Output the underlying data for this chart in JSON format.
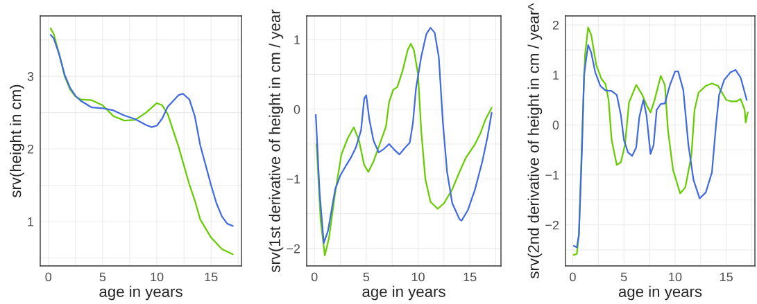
{
  "chart_data": [
    {
      "type": "line",
      "xlabel": "age in years",
      "ylabel": "srv(height in cm)",
      "xlim": [
        -0.75,
        17.8
      ],
      "ylim": [
        0.39,
        3.83
      ],
      "xticks": [
        0,
        5,
        10,
        15
      ],
      "yticks": [
        1,
        2,
        3
      ],
      "grid": true,
      "legend": false,
      "series": [
        {
          "color": "#66cc00",
          "x": [
            0.2,
            0.5,
            1,
            1.5,
            2,
            2.5,
            3,
            4,
            5,
            6,
            7,
            8,
            9,
            10,
            10.5,
            11,
            12,
            13,
            13.5,
            14,
            15,
            16,
            17
          ],
          "values": [
            3.66,
            3.58,
            3.3,
            3.0,
            2.82,
            2.72,
            2.68,
            2.67,
            2.6,
            2.45,
            2.39,
            2.4,
            2.5,
            2.63,
            2.6,
            2.48,
            2.03,
            1.51,
            1.29,
            1.03,
            0.78,
            0.62,
            0.55
          ]
        },
        {
          "color": "#4169e1",
          "x": [
            0.2,
            0.5,
            1,
            1.5,
            2,
            2.5,
            3,
            4,
            5,
            6,
            7,
            8,
            9,
            9.5,
            10,
            10.5,
            11,
            12,
            12.4,
            13,
            13.5,
            14,
            15,
            15.5,
            16,
            16.5,
            17
          ],
          "values": [
            3.57,
            3.52,
            3.3,
            3.02,
            2.84,
            2.73,
            2.66,
            2.57,
            2.56,
            2.53,
            2.46,
            2.41,
            2.33,
            2.3,
            2.32,
            2.42,
            2.58,
            2.74,
            2.76,
            2.68,
            2.45,
            2.05,
            1.5,
            1.25,
            1.07,
            0.97,
            0.94
          ]
        }
      ]
    },
    {
      "type": "line",
      "xlabel": "age in years",
      "ylabel": "srv(1st derivative of height in cm / year",
      "xlim": [
        -0.75,
        18
      ],
      "ylim": [
        -2.25,
        1.34
      ],
      "xticks": [
        0,
        5,
        10,
        15
      ],
      "yticks": [
        -2,
        -1,
        0,
        1
      ],
      "grid": true,
      "legend": false,
      "series": [
        {
          "color": "#66cc00",
          "x": [
            0.2,
            0.6,
            1.0,
            1.4,
            2,
            2.6,
            3.2,
            3.8,
            4.3,
            4.8,
            5.2,
            5.7,
            6.3,
            6.9,
            7.2,
            7.6,
            8,
            8.5,
            9,
            9.3,
            9.6,
            10,
            10.3,
            10.7,
            11.2,
            11.9,
            12.5,
            13.3,
            14,
            14.6,
            15.5,
            16,
            16.5,
            17.1
          ],
          "values": [
            -0.5,
            -1.6,
            -2.1,
            -1.85,
            -1.2,
            -0.65,
            -0.42,
            -0.26,
            -0.45,
            -0.8,
            -0.9,
            -0.75,
            -0.5,
            -0.25,
            0.1,
            0.28,
            0.32,
            0.55,
            0.85,
            0.94,
            0.85,
            0.5,
            -0.3,
            -1.0,
            -1.33,
            -1.43,
            -1.35,
            -1.15,
            -0.9,
            -0.7,
            -0.5,
            -0.35,
            -0.15,
            0.02
          ]
        },
        {
          "color": "#4169e1",
          "x": [
            0.13,
            0.5,
            0.9,
            1.3,
            2,
            2.5,
            3,
            3.5,
            4,
            4.5,
            4.8,
            5,
            5.3,
            5.7,
            6.2,
            6.7,
            7.2,
            7.7,
            8.2,
            8.7,
            9.2,
            9.5,
            9.8,
            10.3,
            10.8,
            11.2,
            11.6,
            12,
            12.4,
            12.8,
            13.3,
            14,
            14.2,
            14.8,
            15.5,
            16.2,
            16.7,
            17.1
          ],
          "values": [
            -0.08,
            -1.2,
            -1.92,
            -1.75,
            -1.15,
            -0.95,
            -0.82,
            -0.7,
            -0.55,
            -0.3,
            0.15,
            0.2,
            -0.15,
            -0.45,
            -0.62,
            -0.57,
            -0.5,
            -0.58,
            -0.65,
            -0.56,
            -0.48,
            -0.2,
            0.3,
            0.75,
            1.08,
            1.17,
            1.1,
            0.75,
            -0.2,
            -0.9,
            -1.35,
            -1.58,
            -1.6,
            -1.45,
            -1.15,
            -0.75,
            -0.4,
            -0.05
          ]
        }
      ]
    },
    {
      "type": "line",
      "xlabel": "age in years",
      "ylabel": "srv(2nd derivative of height in cm / year^",
      "xlim": [
        -0.71,
        17.8
      ],
      "ylim": [
        -2.82,
        2.18
      ],
      "xticks": [
        0,
        5,
        10,
        15
      ],
      "yticks": [
        -2,
        -1,
        0,
        1,
        2
      ],
      "grid": true,
      "legend": false,
      "series": [
        {
          "color": "#66cc00",
          "x": [
            0.1,
            0.4,
            0.6,
            0.9,
            1.2,
            1.5,
            1.8,
            2.3,
            2.8,
            3.2,
            3.5,
            3.8,
            4.3,
            4.7,
            5.1,
            5.5,
            6.2,
            6.8,
            7.2,
            7.6,
            8.0,
            8.6,
            9.0,
            9.3,
            9.8,
            10.5,
            11,
            11.6,
            11.9,
            12.3,
            13.0,
            13.6,
            14.2,
            15,
            15.5,
            16,
            16.4,
            16.8,
            16.9,
            17.1
          ],
          "values": [
            -2.6,
            -2.58,
            -2.2,
            -0.3,
            1.4,
            1.95,
            1.8,
            1.2,
            0.92,
            0.82,
            0.5,
            -0.3,
            -0.8,
            -0.75,
            -0.4,
            0.45,
            0.8,
            0.6,
            0.4,
            0.25,
            0.5,
            0.98,
            0.8,
            -0.1,
            -0.9,
            -1.37,
            -1.25,
            -0.6,
            0.3,
            0.65,
            0.78,
            0.83,
            0.78,
            0.5,
            0.47,
            0.47,
            0.52,
            0.3,
            0.05,
            0.25
          ]
        },
        {
          "color": "#4169e1",
          "x": [
            0.1,
            0.4,
            0.6,
            0.9,
            1.1,
            1.5,
            1.8,
            2.2,
            2.7,
            3.2,
            3.8,
            4.3,
            4.7,
            5.0,
            5.4,
            5.8,
            6.2,
            6.5,
            6.9,
            7.2,
            7.6,
            7.9,
            8.2,
            8.6,
            9,
            9.5,
            10,
            10.3,
            10.8,
            11.3,
            11.8,
            12.4,
            13,
            13.6,
            14.0,
            14.3,
            14.8,
            15.4,
            15.9,
            16.4,
            17.0
          ],
          "values": [
            -2.42,
            -2.45,
            -2.2,
            -0.5,
            1.0,
            1.6,
            1.45,
            1.05,
            0.78,
            0.69,
            0.68,
            0.6,
            0.2,
            -0.3,
            -0.55,
            -0.62,
            -0.45,
            0.15,
            0.5,
            0.2,
            -0.58,
            -0.4,
            0.3,
            0.42,
            0.43,
            0.8,
            1.07,
            1.07,
            0.7,
            -0.4,
            -1.1,
            -1.47,
            -1.35,
            -0.95,
            0.0,
            0.6,
            0.9,
            1.05,
            1.1,
            0.95,
            0.5
          ]
        }
      ]
    }
  ]
}
